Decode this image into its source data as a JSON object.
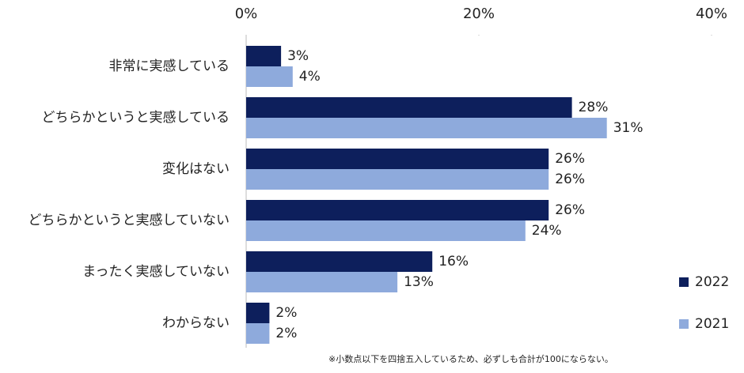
{
  "chart_data": {
    "type": "hbar",
    "categories": [
      "非常に実感している",
      "どちらかというと実感している",
      "変化はない",
      "どちらかというと実感していない",
      "まったく実感していない",
      "わからない"
    ],
    "series": [
      {
        "name": "2022",
        "color": "#0d1f5c",
        "values": [
          3,
          28,
          26,
          26,
          16,
          2
        ],
        "value_labels": [
          "3%",
          "28%",
          "26%",
          "26%",
          "16%",
          "2%"
        ]
      },
      {
        "name": "2021",
        "color": "#8eaadc",
        "values": [
          4,
          31,
          26,
          24,
          13,
          2
        ],
        "value_labels": [
          "4%",
          "31%",
          "26%",
          "24%",
          "13%",
          "2%"
        ]
      }
    ],
    "xlim": [
      0,
      40
    ],
    "xticks": [
      {
        "value": 0,
        "label": "0%"
      },
      {
        "value": 20,
        "label": "20%"
      },
      {
        "value": 40,
        "label": "40%"
      }
    ],
    "legend": "right",
    "note": "※小数点以下を四捨五入しているため、必ずしも合計が100にならない。"
  }
}
